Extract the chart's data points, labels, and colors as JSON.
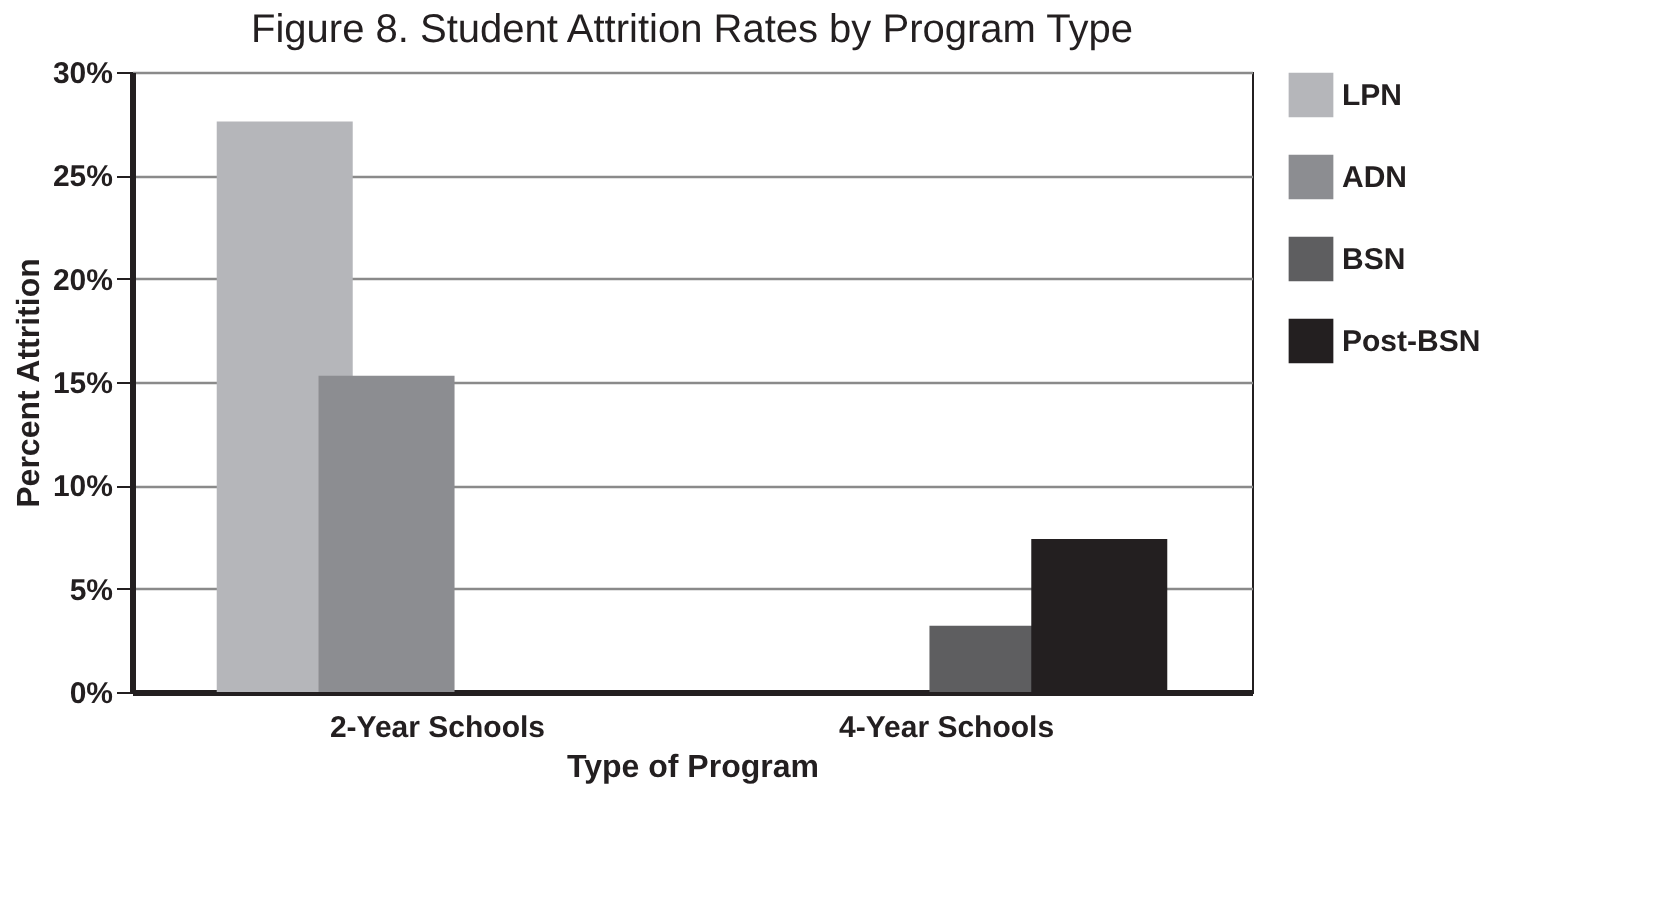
{
  "chart_data": {
    "type": "bar",
    "title": "Figure 8.  Student Attrition Rates by Program Type",
    "xlabel": "Type of Program",
    "ylabel": "Percent Attrition",
    "categories": [
      "2-Year Schools",
      "4-Year Schools"
    ],
    "series": [
      {
        "name": "LPN",
        "color": "#b5b6ba",
        "values": [
          27.6,
          null
        ]
      },
      {
        "name": "ADN",
        "color": "#8c8d91",
        "values": [
          15.3,
          null
        ]
      },
      {
        "name": "BSN",
        "color": "#5e5e60",
        "values": [
          null,
          3.2
        ]
      },
      {
        "name": "Post-BSN",
        "color": "#231f20",
        "values": [
          null,
          7.4
        ]
      }
    ],
    "ylim": [
      0,
      30
    ],
    "yticks": [
      {
        "value": 0,
        "label": "0%"
      },
      {
        "value": 5,
        "label": "5%"
      },
      {
        "value": 10,
        "label": "10%"
      },
      {
        "value": 15,
        "label": "15%"
      },
      {
        "value": 20,
        "label": "20%"
      },
      {
        "value": 25,
        "label": "25%"
      },
      {
        "value": 30,
        "label": "30%"
      }
    ],
    "grid": "y",
    "legend": "right"
  }
}
